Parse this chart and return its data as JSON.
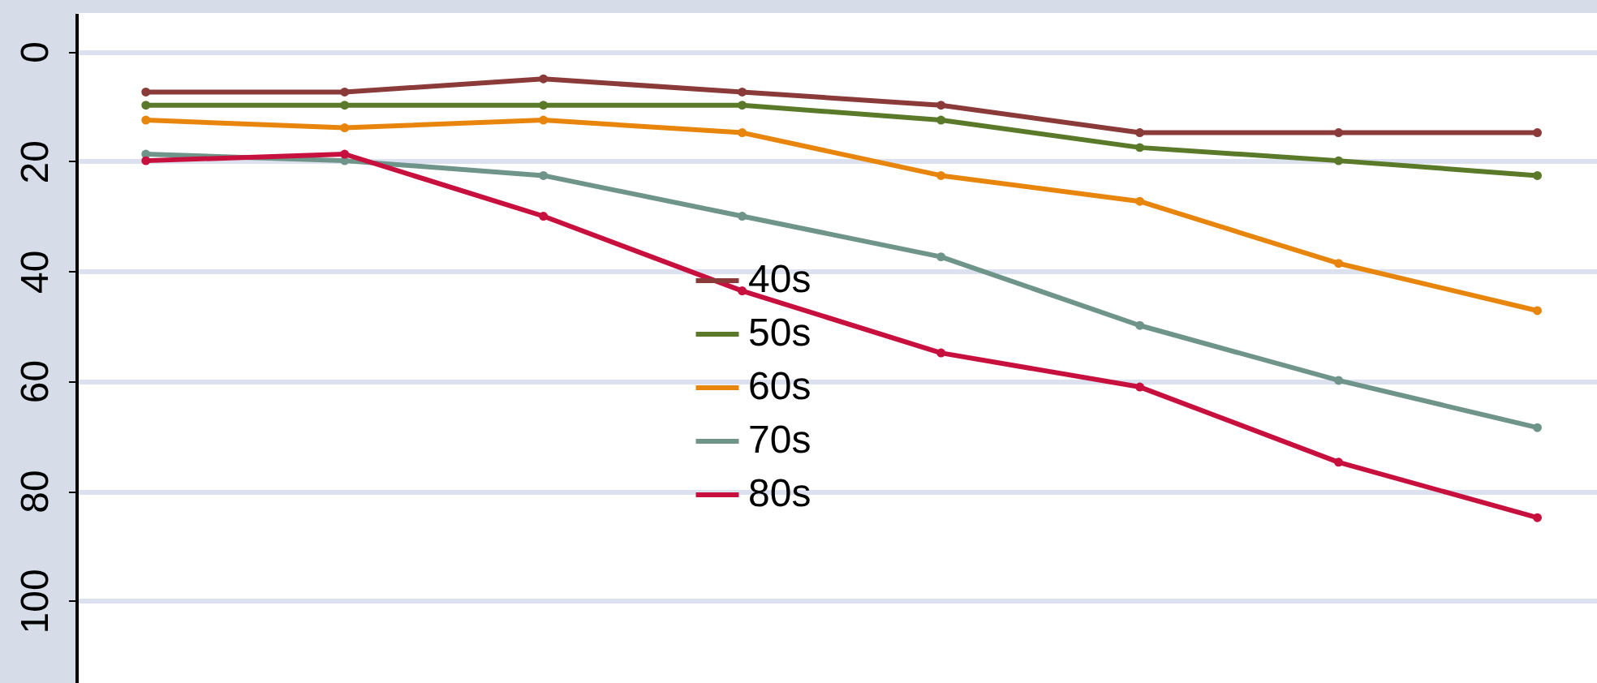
{
  "chart_data": {
    "type": "line",
    "categories": [
      null,
      null,
      null,
      null,
      null,
      null,
      null,
      null
    ],
    "series": [
      {
        "name": "40s",
        "color": "#8b3a3a",
        "values": [
          7.4,
          7.4,
          5.0,
          7.4,
          9.8,
          14.8,
          14.8,
          14.8
        ]
      },
      {
        "name": "50s",
        "color": "#5a7a2a",
        "values": [
          9.8,
          9.8,
          9.8,
          9.8,
          12.5,
          17.5,
          19.9,
          22.6
        ]
      },
      {
        "name": "60s",
        "color": "#e8850c",
        "values": [
          12.5,
          13.9,
          12.5,
          14.8,
          22.6,
          27.3,
          38.6,
          47.2
        ]
      },
      {
        "name": "70s",
        "color": "#6f948a",
        "values": [
          18.7,
          19.9,
          22.6,
          30,
          37.4,
          49.9,
          59.9,
          68.5
        ]
      },
      {
        "name": "80s",
        "color": "#c8103e",
        "values": [
          19.9,
          18.7,
          30,
          43.6,
          54.9,
          61.1,
          74.8,
          84.9
        ]
      }
    ],
    "ylim": [
      115,
      -7
    ],
    "yticks": [
      0,
      20,
      40,
      60,
      80,
      100
    ],
    "grid": "y",
    "legend": "bottom",
    "marker": "circle",
    "tick_labels": "y"
  }
}
